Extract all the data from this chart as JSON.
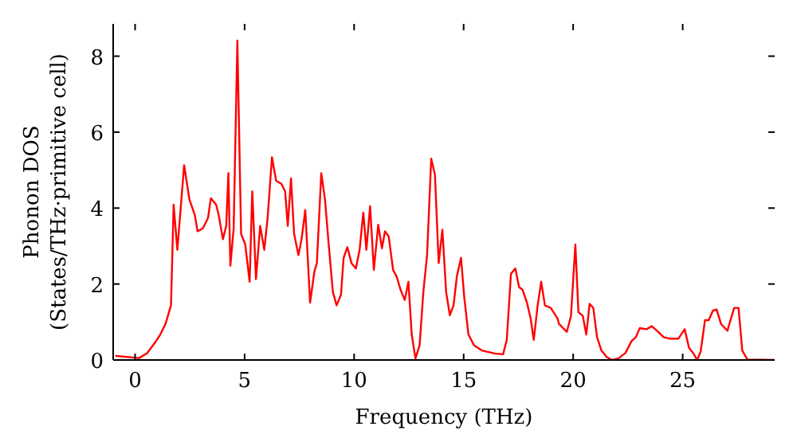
{
  "chart_data": {
    "type": "line",
    "xlabel": "Frequency (THz)",
    "ylabel": "Phonon DOS\n(States/THz·primitive cell)",
    "xlim": [
      -1,
      29.2
    ],
    "xticks": [
      0,
      5,
      10,
      15,
      20,
      25
    ],
    "ylim": [
      0,
      8.85
    ],
    "yticks": [
      0,
      2,
      4,
      6,
      8
    ],
    "series": [
      {
        "color": "#ff0000",
        "x": [
          -0.9,
          0.18,
          0.55,
          0.91,
          1.15,
          1.39,
          1.64,
          1.76,
          1.93,
          2.24,
          2.48,
          2.73,
          2.85,
          3.09,
          3.33,
          3.46,
          3.7,
          3.82,
          4.01,
          4.16,
          4.26,
          4.35,
          4.5,
          4.67,
          4.84,
          5.03,
          5.23,
          5.35,
          5.52,
          5.71,
          5.9,
          6.05,
          6.25,
          6.44,
          6.68,
          6.85,
          6.97,
          7.12,
          7.26,
          7.46,
          7.6,
          7.77,
          7.99,
          8.19,
          8.3,
          8.5,
          8.67,
          8.84,
          9.03,
          9.2,
          9.4,
          9.52,
          9.69,
          9.88,
          10.08,
          10.25,
          10.42,
          10.56,
          10.73,
          10.9,
          11.1,
          11.27,
          11.41,
          11.58,
          11.78,
          11.94,
          12.12,
          12.31,
          12.48,
          12.63,
          12.8,
          12.99,
          13.16,
          13.33,
          13.52,
          13.69,
          13.86,
          14.03,
          14.2,
          14.37,
          14.54,
          14.69,
          14.88,
          15.03,
          15.22,
          15.47,
          15.83,
          16.43,
          16.8,
          16.97,
          17.16,
          17.36,
          17.53,
          17.69,
          17.89,
          18.06,
          18.2,
          18.38,
          18.54,
          18.71,
          18.98,
          19.29,
          19.35,
          19.71,
          19.9,
          20.1,
          20.24,
          20.44,
          20.6,
          20.75,
          20.92,
          21.09,
          21.29,
          21.53,
          21.77,
          22.06,
          22.38,
          22.67,
          22.86,
          23.04,
          23.35,
          23.59,
          23.88,
          24.13,
          24.44,
          24.8,
          25.09,
          25.29,
          25.48,
          25.66,
          25.82,
          26.02,
          26.19,
          26.38,
          26.55,
          26.75,
          27.04,
          27.35,
          27.55,
          27.72,
          27.96,
          29.17
        ],
        "values": [
          0.11,
          0.05,
          0.18,
          0.46,
          0.67,
          0.95,
          1.44,
          4.09,
          2.9,
          5.13,
          4.23,
          3.81,
          3.39,
          3.46,
          3.74,
          4.26,
          4.09,
          3.81,
          3.18,
          3.53,
          4.92,
          2.48,
          3.46,
          8.41,
          3.32,
          3.04,
          2.06,
          4.44,
          2.13,
          3.53,
          2.9,
          3.74,
          5.34,
          4.72,
          4.64,
          4.44,
          3.53,
          4.78,
          3.32,
          2.76,
          3.18,
          3.95,
          1.51,
          2.34,
          2.55,
          4.92,
          4.23,
          3.04,
          1.79,
          1.44,
          1.72,
          2.69,
          2.97,
          2.55,
          2.41,
          2.9,
          3.88,
          2.9,
          4.05,
          2.37,
          3.56,
          2.94,
          3.39,
          3.25,
          2.37,
          2.2,
          1.85,
          1.58,
          2.06,
          0.67,
          0.04,
          0.39,
          1.79,
          2.76,
          5.3,
          4.88,
          2.55,
          3.43,
          1.79,
          1.18,
          1.44,
          2.2,
          2.69,
          1.64,
          0.67,
          0.39,
          0.25,
          0.17,
          0.15,
          0.53,
          2.27,
          2.41,
          1.92,
          1.85,
          1.51,
          1.09,
          0.53,
          1.44,
          2.06,
          1.44,
          1.37,
          1.09,
          0.95,
          0.74,
          1.16,
          3.04,
          1.26,
          1.16,
          0.67,
          1.48,
          1.37,
          0.6,
          0.25,
          0.08,
          0,
          0.04,
          0.18,
          0.5,
          0.6,
          0.84,
          0.81,
          0.89,
          0.74,
          0.6,
          0.56,
          0.56,
          0.81,
          0.32,
          0.18,
          0,
          0.22,
          1.05,
          1.05,
          1.3,
          1.33,
          0.95,
          0.77,
          1.37,
          1.37,
          0.25,
          0.01,
          0
        ]
      }
    ]
  }
}
